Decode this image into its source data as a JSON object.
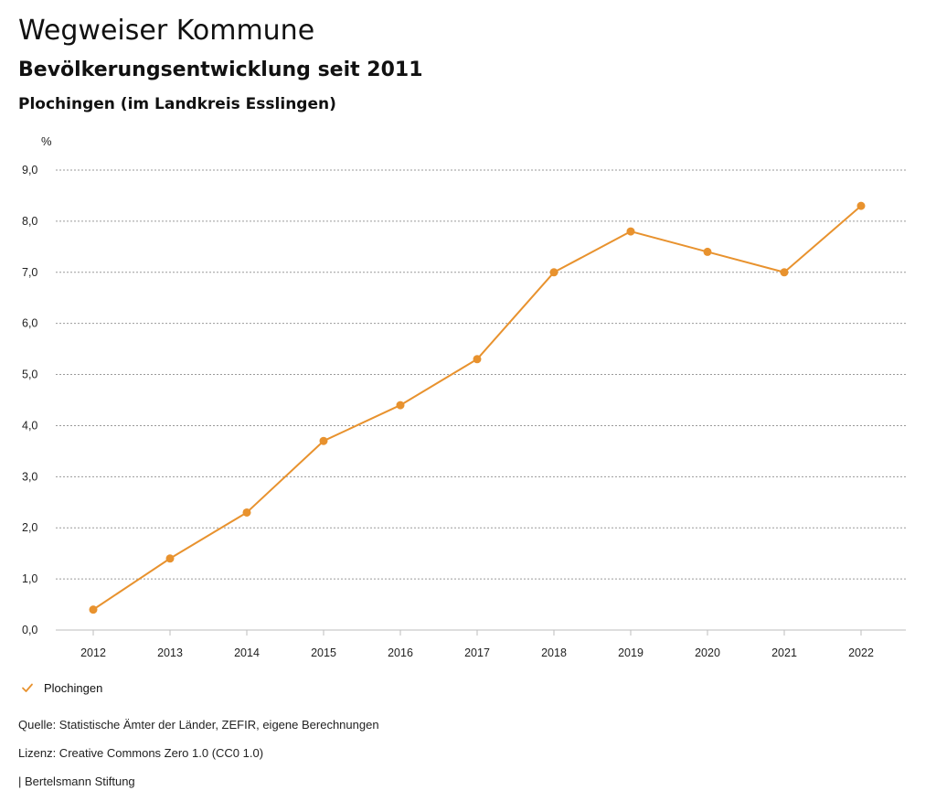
{
  "header": {
    "title": "Wegweiser Kommune",
    "subtitle": "Bevölkerungsentwicklung seit 2011",
    "region": "Plochingen (im Landkreis Esslingen)"
  },
  "chart_data": {
    "type": "line",
    "ylabel": "%",
    "ylim": [
      0,
      9
    ],
    "yticks": [
      "0,0",
      "1,0",
      "2,0",
      "3,0",
      "4,0",
      "5,0",
      "6,0",
      "7,0",
      "8,0",
      "9,0"
    ],
    "categories": [
      "2012",
      "2013",
      "2014",
      "2015",
      "2016",
      "2017",
      "2018",
      "2019",
      "2020",
      "2021",
      "2022"
    ],
    "series": [
      {
        "name": "Plochingen",
        "color": "#e8922e",
        "values": [
          0.4,
          1.4,
          2.3,
          3.7,
          4.4,
          5.3,
          7.0,
          7.8,
          7.4,
          7.0,
          8.3
        ]
      }
    ],
    "grid": true,
    "legend": "bottom-left"
  },
  "legend": {
    "label": "Plochingen",
    "icon": "check-icon"
  },
  "footer": {
    "source": "Quelle: Statistische Ämter der Länder, ZEFIR, eigene Berechnungen",
    "license": "Lizenz: Creative Commons Zero 1.0 (CC0 1.0)",
    "credit": "| Bertelsmann Stiftung"
  }
}
